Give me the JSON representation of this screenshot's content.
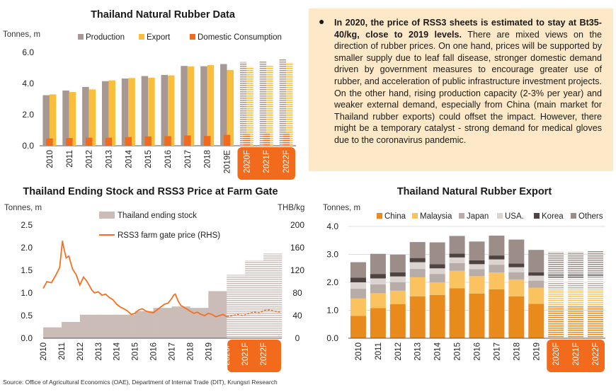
{
  "colors": {
    "production": "#a79893",
    "export": "#f9be3c",
    "domestic": "#f26b1d",
    "stock": "#cbbcb7",
    "price": "#f37021",
    "forecast_box": "#f26b1d",
    "china": "#e98a1d",
    "malaysia": "#fbc35f",
    "japan": "#b7aca8",
    "usa": "#dad3d0",
    "korea": "#4e4341",
    "others": "#9d8d89",
    "note_bg": "#fde9c8"
  },
  "note": {
    "bold": "In 2020, the price of RSS3 sheets is estimated to stay at Bt35-40/kg, close to 2019 levels.",
    "body": " There are mixed views on the direction of rubber prices. On one hand, prices will be supported by smaller supply due to leaf fall disease, stronger domestic demand driven by government measures to encourage greater use of rubber, and acceleration of public infrastructure investment projects. On the other hand, rising production capacity (2-3% per year) and weaker external demand, especially from China (main market for Thailand rubber exports) could offset the impact. However, there might be a temporary catalyst - strong demand for medical gloves due to the coronavirus pandemic."
  },
  "source": "Source: Office of Agricultural Economics (OAE), Department of Internal Trade (DIT), Krungsri Research",
  "chart_data": [
    {
      "type": "bar",
      "title": "Thailand Natural Rubber Data",
      "ylabel": "Tonnes, m",
      "ylim": [
        0,
        6
      ],
      "yticks": [
        "0.0",
        "2.0",
        "4.0",
        "6.0"
      ],
      "categories": [
        "2010",
        "2011",
        "2012",
        "2013",
        "2014",
        "2015",
        "2016",
        "2017",
        "2018",
        "2019E",
        "2020F",
        "2021F",
        "2022F"
      ],
      "forecast_from": 10,
      "series": [
        {
          "name": "Production",
          "values": [
            3.25,
            3.55,
            3.78,
            4.15,
            4.32,
            4.48,
            4.55,
            5.13,
            5.11,
            5.25,
            5.38,
            5.47,
            5.55
          ]
        },
        {
          "name": "Export",
          "values": [
            3.3,
            3.45,
            3.62,
            4.2,
            4.35,
            4.37,
            4.52,
            5.1,
            5.18,
            4.87,
            5.08,
            5.13,
            5.35
          ]
        },
        {
          "name": "Domestic Consumption",
          "values": [
            0.47,
            0.5,
            0.52,
            0.52,
            0.56,
            0.6,
            0.62,
            0.66,
            0.63,
            0.7,
            0.75,
            0.8,
            0.86
          ]
        }
      ]
    },
    {
      "type": "area",
      "title": "Thailand Ending Stock and RSS3 Price at Farm Gate",
      "ylabel": "Tonnes, m",
      "y2label": "THB/kg",
      "ylim": [
        0,
        2.5
      ],
      "y2lim": [
        0,
        200
      ],
      "yticks": [
        "0.0",
        "0.5",
        "1.0",
        "1.5",
        "2.0",
        "2.5"
      ],
      "y2ticks": [
        "0",
        "40",
        "80",
        "120",
        "160",
        "200"
      ],
      "categories": [
        "2010",
        "2011",
        "2012",
        "2013",
        "2014",
        "2015",
        "2016",
        "2017",
        "2018",
        "2019",
        "2020F",
        "2021F",
        "2022F"
      ],
      "forecast_from": 10,
      "series": [
        {
          "name": "Thailand ending stock",
          "values": [
            0.24,
            0.36,
            0.52,
            0.52,
            0.52,
            0.6,
            0.67,
            0.7,
            0.67,
            1.04,
            1.4,
            1.72,
            1.87
          ]
        },
        {
          "name": "RSS3 farm gate price (RHS)",
          "axis": "right",
          "x": [
            2010,
            2010.2,
            2010.45,
            2010.7,
            2010.9,
            2011.05,
            2011.12,
            2011.25,
            2011.4,
            2011.6,
            2011.8,
            2012,
            2012.2,
            2012.35,
            2012.5,
            2012.65,
            2012.8,
            2013,
            2013.2,
            2013.4,
            2013.6,
            2013.8,
            2014,
            2014.2,
            2014.4,
            2014.6,
            2014.8,
            2015,
            2015.2,
            2015.4,
            2015.6,
            2015.8,
            2016,
            2016.2,
            2016.4,
            2016.6,
            2016.8,
            2017,
            2017.1,
            2017.2,
            2017.35,
            2017.5,
            2017.7,
            2017.9,
            2018,
            2018.2,
            2018.4,
            2018.6,
            2018.8,
            2019,
            2019.2,
            2019.4,
            2019.6,
            2019.8,
            2020,
            2020.3,
            2020.6,
            2020.9,
            2021.2,
            2021.5,
            2021.8,
            2022,
            2022.3,
            2022.6,
            2022.9
          ],
          "values": [
            88,
            100,
            98,
            112,
            125,
            172,
            160,
            142,
            145,
            122,
            112,
            94,
            108,
            102,
            94,
            85,
            80,
            82,
            76,
            78,
            72,
            68,
            60,
            55,
            52,
            48,
            42,
            44,
            50,
            52,
            48,
            46,
            45,
            50,
            55,
            60,
            62,
            70,
            76,
            78,
            66,
            58,
            54,
            50,
            48,
            44,
            46,
            42,
            40,
            44,
            42,
            38,
            40,
            42,
            38,
            40,
            42,
            40,
            44,
            46,
            45,
            49,
            50,
            48,
            46
          ]
        }
      ]
    },
    {
      "type": "bar",
      "title": "Thailand Natural Rubber Export",
      "ylabel": "Tonnes, m",
      "ylim": [
        0,
        4
      ],
      "yticks": [
        "0.0",
        "1.0",
        "2.0",
        "3.0",
        "4.0"
      ],
      "categories": [
        "2010",
        "2011",
        "2012",
        "2013",
        "2014",
        "2015",
        "2016",
        "2017",
        "2018",
        "2019",
        "2020F",
        "2021F",
        "2022F"
      ],
      "forecast_from": 10,
      "series": [
        {
          "name": "China",
          "values": [
            0.8,
            1.08,
            1.22,
            1.5,
            1.55,
            1.79,
            1.6,
            1.75,
            1.5,
            1.23,
            1.15,
            1.15,
            1.15
          ]
        },
        {
          "name": "Malaysia",
          "values": [
            0.62,
            0.53,
            0.48,
            0.68,
            0.45,
            0.62,
            0.62,
            0.6,
            0.6,
            0.58,
            0.6,
            0.6,
            0.62
          ]
        },
        {
          "name": "Japan",
          "values": [
            0.35,
            0.32,
            0.3,
            0.3,
            0.3,
            0.28,
            0.25,
            0.28,
            0.26,
            0.25,
            0.25,
            0.25,
            0.25
          ]
        },
        {
          "name": "USA.",
          "values": [
            0.23,
            0.21,
            0.21,
            0.24,
            0.2,
            0.2,
            0.18,
            0.19,
            0.18,
            0.18,
            0.17,
            0.17,
            0.17
          ]
        },
        {
          "name": "Korea",
          "values": [
            0.17,
            0.16,
            0.15,
            0.15,
            0.15,
            0.14,
            0.14,
            0.14,
            0.13,
            0.12,
            0.12,
            0.12,
            0.12
          ]
        },
        {
          "name": "Others",
          "values": [
            0.55,
            0.72,
            0.63,
            0.57,
            0.78,
            0.63,
            0.67,
            0.71,
            0.86,
            0.8,
            0.8,
            0.8,
            0.82
          ]
        }
      ]
    }
  ]
}
